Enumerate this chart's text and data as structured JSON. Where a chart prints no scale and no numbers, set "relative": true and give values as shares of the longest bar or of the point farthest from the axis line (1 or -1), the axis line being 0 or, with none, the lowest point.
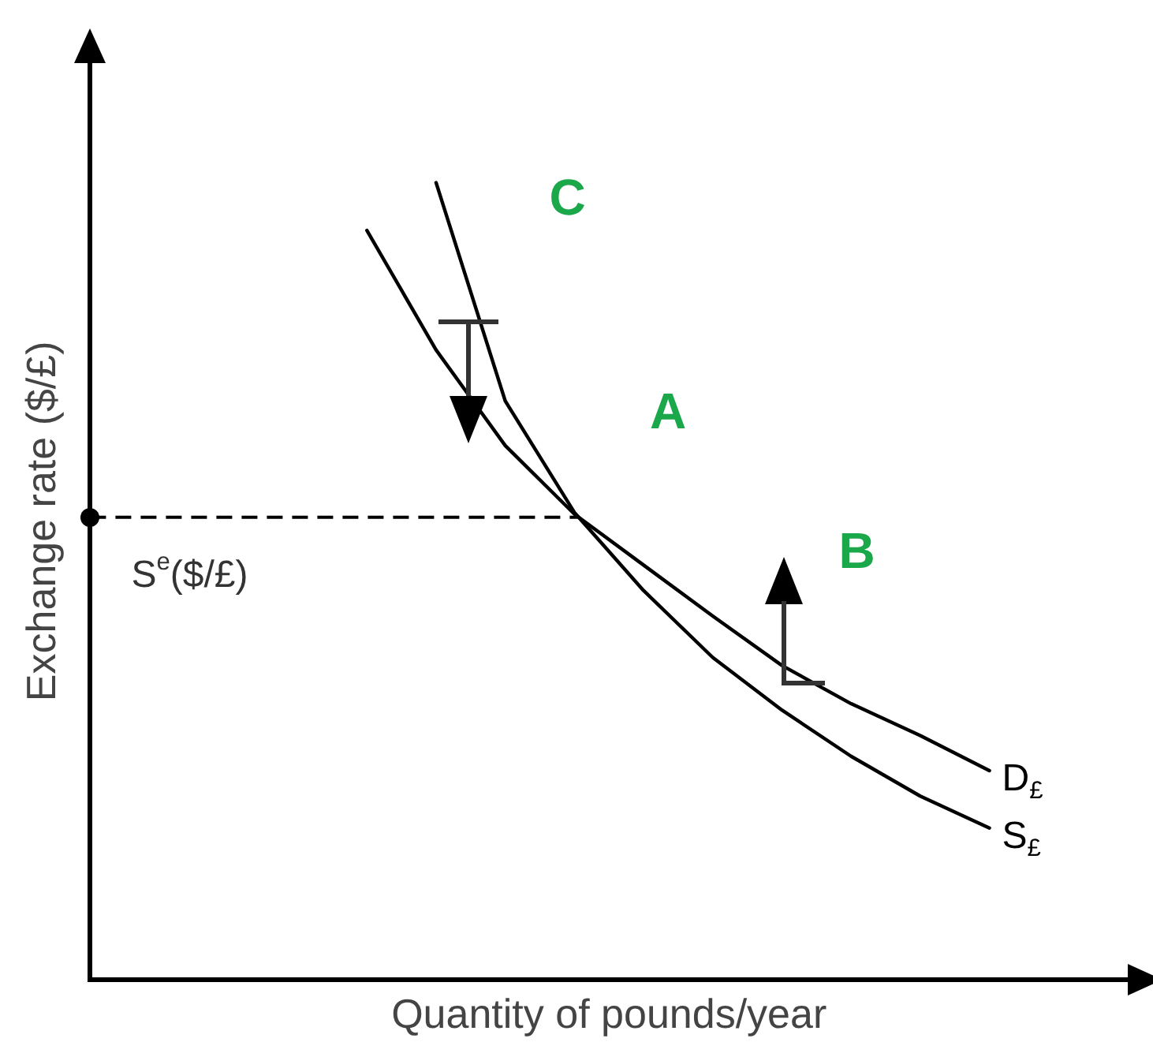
{
  "chart_data": {
    "type": "line",
    "relative": true,
    "xlabel": "Quantity of pounds/year",
    "ylabel": "Exchange rate ($/£)",
    "grid": false,
    "legend": false,
    "marker": "none",
    "line_style": "solid",
    "categories": [
      null,
      null,
      null,
      null,
      null,
      null,
      null,
      null,
      null,
      null,
      null,
      null,
      null,
      null,
      null,
      null
    ],
    "series": [
      {
        "name": "D$_{£}$",
        "color": "#000000",
        "values": [
          null,
          null,
          null,
          null,
          0.94,
          0.79,
          0.67,
          0.584,
          0.52,
          0.456,
          0.394,
          0.346,
          0.306,
          0.262,
          null,
          null
        ]
      },
      {
        "name": "S$_{£}$",
        "color": "#000000",
        "values": [
          null,
          null,
          null,
          null,
          null,
          1,
          0.726,
          0.586,
          0.488,
          0.404,
          0.338,
          0.28,
          0.23,
          0.19,
          null,
          null
        ]
      }
    ],
    "ref_lines": [
      {
        "axis": "y",
        "value": 0.58,
        "label": "S$^{e}$($/£)",
        "line_style": "dashed",
        "color": "#000000"
      }
    ],
    "annotations": [
      "C",
      "A",
      "B"
    ]
  }
}
